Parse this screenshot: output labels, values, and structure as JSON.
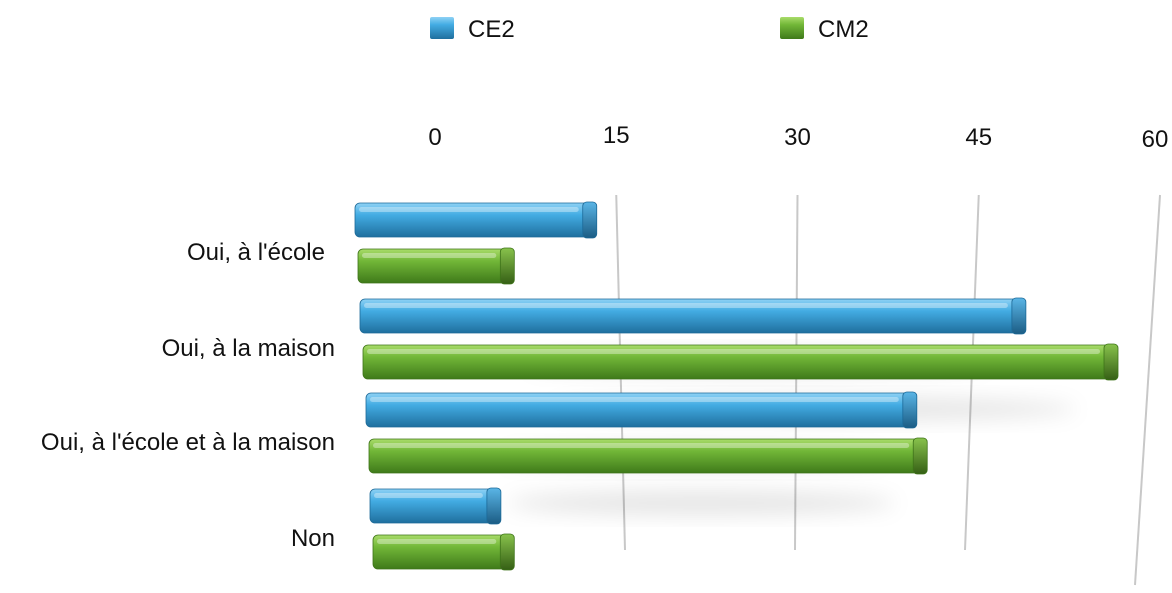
{
  "chart_data": {
    "type": "bar",
    "orientation": "horizontal",
    "style": "3d",
    "categories": [
      "Oui, à l'école",
      "Oui, à la maison",
      "Oui, à l'école et à la maison",
      "Non"
    ],
    "series": [
      {
        "name": "CE2",
        "values": [
          13,
          49,
          40,
          4
        ],
        "color": "#2e93cf"
      },
      {
        "name": "CM2",
        "values": [
          6,
          57,
          41,
          5
        ],
        "color": "#67a82f"
      }
    ],
    "x_ticks": [
      "0",
      "15",
      "30",
      "45",
      "60"
    ],
    "xlim": [
      0,
      60
    ],
    "grid": true,
    "legend_position": "top",
    "tick_position": "top"
  }
}
